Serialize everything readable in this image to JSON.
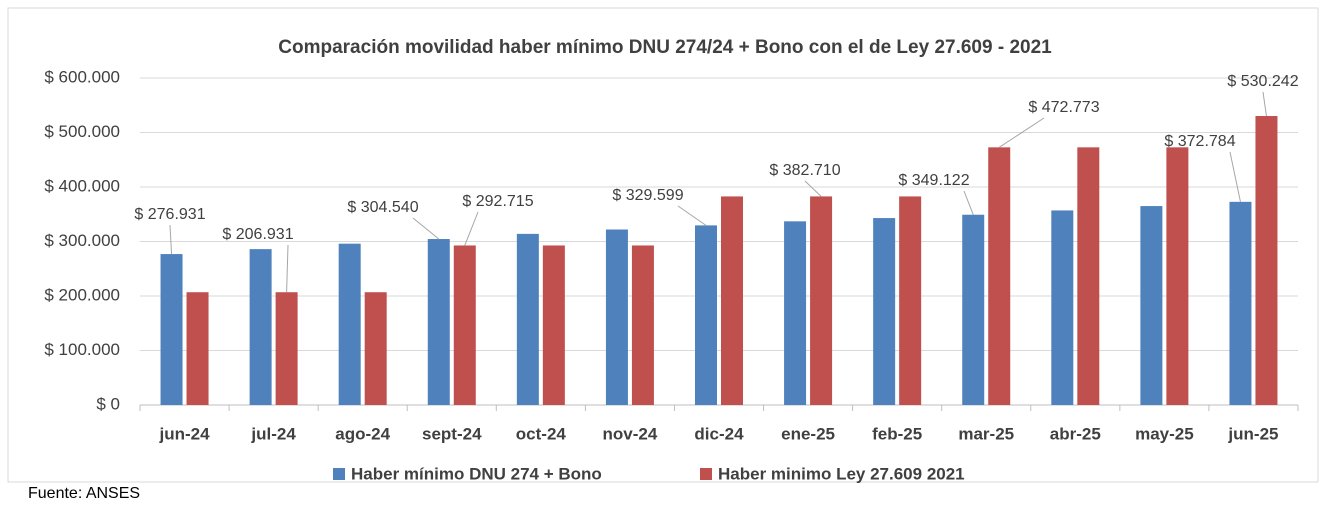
{
  "chart_data": {
    "type": "bar",
    "title": "Comparación  movilidad haber mínimo DNU 274/24 + Bono con el de Ley 27.609 - 2021",
    "categories": [
      "jun-24",
      "jul-24",
      "ago-24",
      "sept-24",
      "oct-24",
      "nov-24",
      "dic-24",
      "ene-25",
      "feb-25",
      "mar-25",
      "abr-25",
      "may-25",
      "jun-25"
    ],
    "series": [
      {
        "name": "Haber mínimo DNU 274 + Bono",
        "color": "#4f81bd",
        "values": [
          276931,
          286000,
          296000,
          304540,
          314000,
          322000,
          329599,
          337000,
          343000,
          349122,
          357000,
          365000,
          372784
        ],
        "value_labels": [
          "$ 276.931",
          null,
          null,
          "$ 304.540",
          null,
          null,
          "$ 329.599",
          null,
          null,
          "$ 349.122",
          null,
          null,
          "$ 372.784"
        ]
      },
      {
        "name": "Haber minimo Ley 27.609 2021",
        "color": "#c0504d",
        "values": [
          206931,
          206931,
          206931,
          292715,
          292715,
          292715,
          382710,
          382710,
          382710,
          472773,
          472773,
          472773,
          530242
        ],
        "value_labels": [
          null,
          "$ 206.931",
          null,
          "$ 292.715",
          null,
          null,
          null,
          "$ 382.710",
          null,
          "$ 472.773",
          null,
          null,
          "$ 530.242"
        ]
      }
    ],
    "ylim": [
      0,
      600000
    ],
    "yticks": [
      {
        "value": 0,
        "label": "$ 0"
      },
      {
        "value": 100000,
        "label": "$ 100.000"
      },
      {
        "value": 200000,
        "label": "$ 200.000"
      },
      {
        "value": 300000,
        "label": "$ 300.000"
      },
      {
        "value": 400000,
        "label": "$ 400.000"
      },
      {
        "value": 500000,
        "label": "$ 500.000"
      },
      {
        "value": 600000,
        "label": "$ 600.000"
      }
    ],
    "grid": true,
    "legend": "bottom",
    "source": "Fuente: ANSES"
  }
}
